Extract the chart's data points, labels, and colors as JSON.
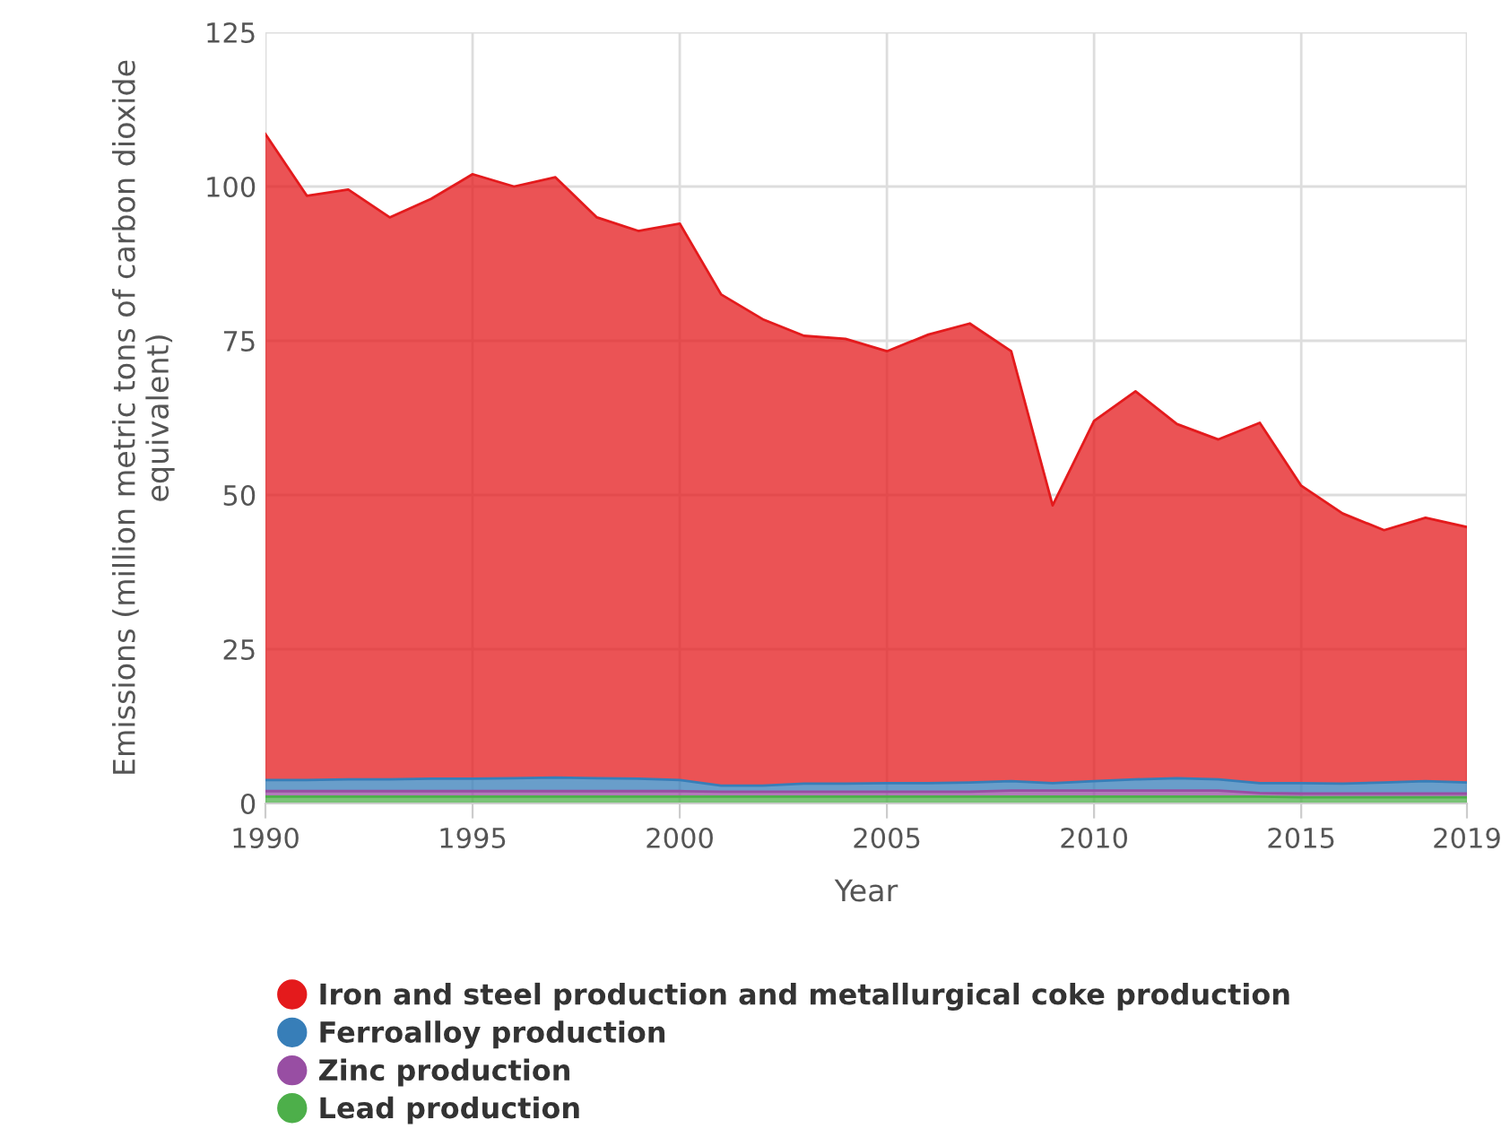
{
  "chart_data": {
    "type": "area",
    "stacked": true,
    "xlabel": "Year",
    "ylabel": "Emissions (million metric tons of carbon dioxide equivalent)",
    "x": [
      1990,
      1991,
      1992,
      1993,
      1994,
      1995,
      1996,
      1997,
      1998,
      1999,
      2000,
      2001,
      2002,
      2003,
      2004,
      2005,
      2006,
      2007,
      2008,
      2009,
      2010,
      2011,
      2012,
      2013,
      2014,
      2015,
      2016,
      2017,
      2018,
      2019
    ],
    "series": [
      {
        "name": "Lead production",
        "color": "#4daf4a",
        "values": [
          1.1,
          1.1,
          1.1,
          1.1,
          1.1,
          1.1,
          1.1,
          1.1,
          1.1,
          1.1,
          1.1,
          1.1,
          1.1,
          1.1,
          1.1,
          1.1,
          1.1,
          1.1,
          1.1,
          1.1,
          1.1,
          1.1,
          1.1,
          1.1,
          1.1,
          1.0,
          1.0,
          1.0,
          1.0,
          1.0
        ]
      },
      {
        "name": "Zinc production",
        "color": "#984ea3",
        "values": [
          0.9,
          0.9,
          0.9,
          0.9,
          0.9,
          0.9,
          0.9,
          0.9,
          0.9,
          0.9,
          0.9,
          0.8,
          0.8,
          0.8,
          0.8,
          0.8,
          0.8,
          0.8,
          1.0,
          1.0,
          1.0,
          1.0,
          1.0,
          1.0,
          0.6,
          0.6,
          0.6,
          0.6,
          0.6,
          0.6
        ]
      },
      {
        "name": "Ferroalloy production",
        "color": "#377eb8",
        "values": [
          1.8,
          1.8,
          1.9,
          1.9,
          2.0,
          2.0,
          2.1,
          2.2,
          2.1,
          2.0,
          1.8,
          1.0,
          1.0,
          1.3,
          1.3,
          1.4,
          1.4,
          1.5,
          1.5,
          1.2,
          1.5,
          1.8,
          2.0,
          1.8,
          1.6,
          1.7,
          1.6,
          1.8,
          2.0,
          1.8
        ]
      },
      {
        "name": "Iron and steel production and metallurgical coke production",
        "color": "#e41a1c",
        "values": [
          104.7,
          94.7,
          95.6,
          91.1,
          94.0,
          98.0,
          95.9,
          97.3,
          90.9,
          88.8,
          90.2,
          79.6,
          75.6,
          72.6,
          72.1,
          70.0,
          72.7,
          74.4,
          69.7,
          45.0,
          58.4,
          62.9,
          57.4,
          55.1,
          58.4,
          48.2,
          43.8,
          40.9,
          42.7,
          41.4
        ]
      }
    ],
    "xlim": [
      1990,
      2019
    ],
    "xticks": [
      1990,
      1995,
      2000,
      2005,
      2010,
      2015,
      2019
    ],
    "ylim": [
      0,
      125
    ],
    "yticks": [
      0,
      25,
      50,
      75,
      100,
      125
    ],
    "grid": true,
    "legend": "bottom"
  }
}
